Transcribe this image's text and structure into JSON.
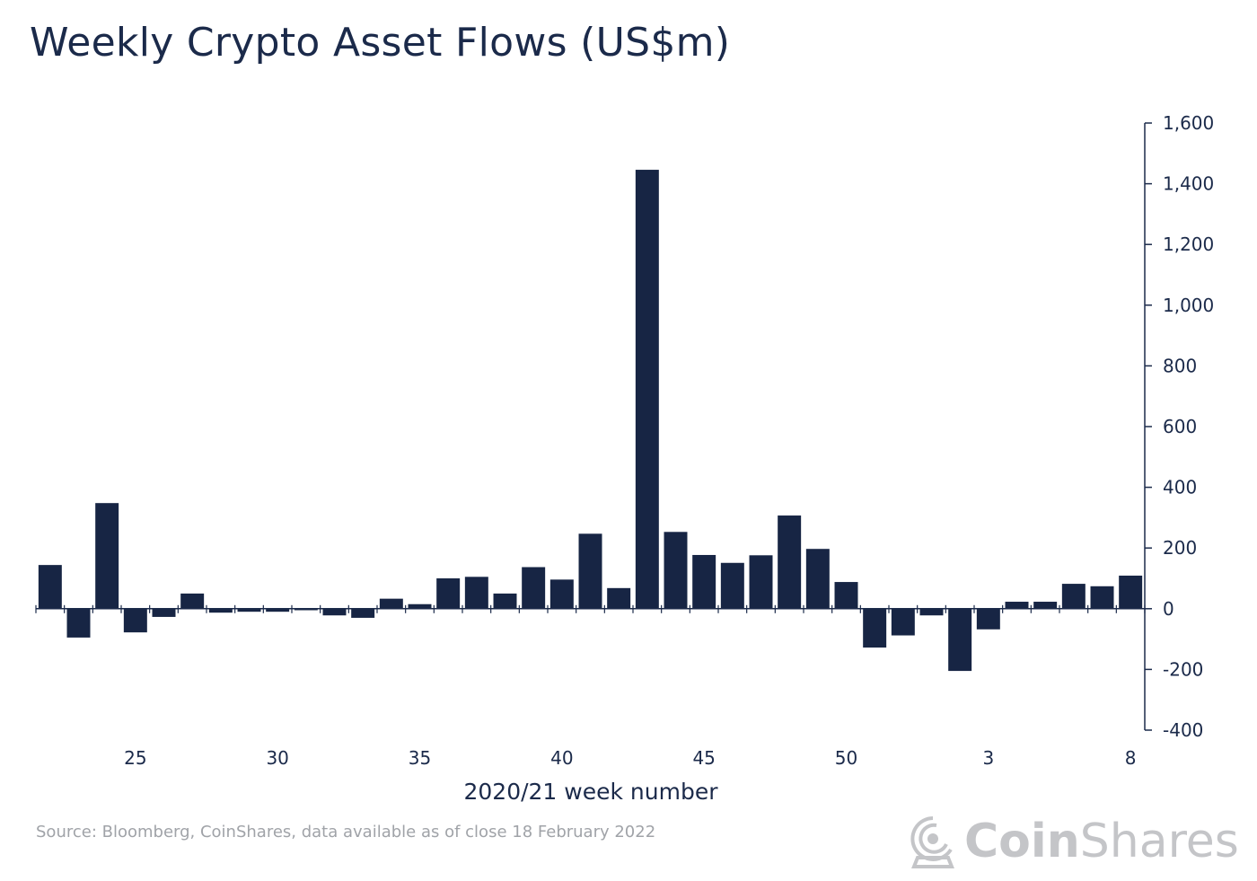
{
  "title": "Weekly Crypto Asset Flows (US$m)",
  "source": "Source: Bloomberg, CoinShares, data available as of close 18 February 2022",
  "logo": {
    "brand_bold": "Coin",
    "brand_light": "Shares",
    "icon": "astronaut-helmet-icon"
  },
  "colors": {
    "bar": "#172544",
    "axis": "#1b2a4a",
    "text": "#1b2a4a",
    "muted": "#a0a3a8"
  },
  "chart_data": {
    "type": "bar",
    "title": "Weekly Crypto Asset Flows (US$m)",
    "xlabel": "2020/21 week number",
    "ylabel": "US$m",
    "ylim": [
      -400,
      1600
    ],
    "yticks": [
      -400,
      -200,
      0,
      200,
      400,
      600,
      800,
      1000,
      1200,
      1400,
      1600
    ],
    "ytick_labels": [
      "-400",
      "-200",
      "0",
      "200",
      "400",
      "600",
      "800",
      "1,000",
      "1,200",
      "1,400",
      "1,600"
    ],
    "y_axis_position": "right",
    "grid": false,
    "categories": [
      "22",
      "23",
      "24",
      "25",
      "26",
      "27",
      "28",
      "29",
      "30",
      "31",
      "32",
      "33",
      "34",
      "35",
      "36",
      "37",
      "38",
      "39",
      "40",
      "41",
      "42",
      "43",
      "44",
      "45",
      "46",
      "47",
      "48",
      "49",
      "50",
      "51",
      "52",
      "1",
      "2",
      "3",
      "4",
      "5",
      "6",
      "7",
      "8"
    ],
    "xtick_labels": [
      {
        "index": 3,
        "label": "25"
      },
      {
        "index": 8,
        "label": "30"
      },
      {
        "index": 13,
        "label": "35"
      },
      {
        "index": 18,
        "label": "40"
      },
      {
        "index": 23,
        "label": "45"
      },
      {
        "index": 28,
        "label": "50"
      },
      {
        "index": 33,
        "label": "3"
      },
      {
        "index": 38,
        "label": "8"
      }
    ],
    "values": [
      144,
      -95,
      348,
      -78,
      -27,
      50,
      -13,
      -10,
      -10,
      -5,
      -22,
      -30,
      33,
      15,
      100,
      105,
      50,
      137,
      96,
      247,
      68,
      1446,
      253,
      177,
      151,
      176,
      307,
      197,
      88,
      -128,
      -88,
      -22,
      -205,
      -68,
      23,
      23,
      82,
      74,
      109
    ]
  }
}
